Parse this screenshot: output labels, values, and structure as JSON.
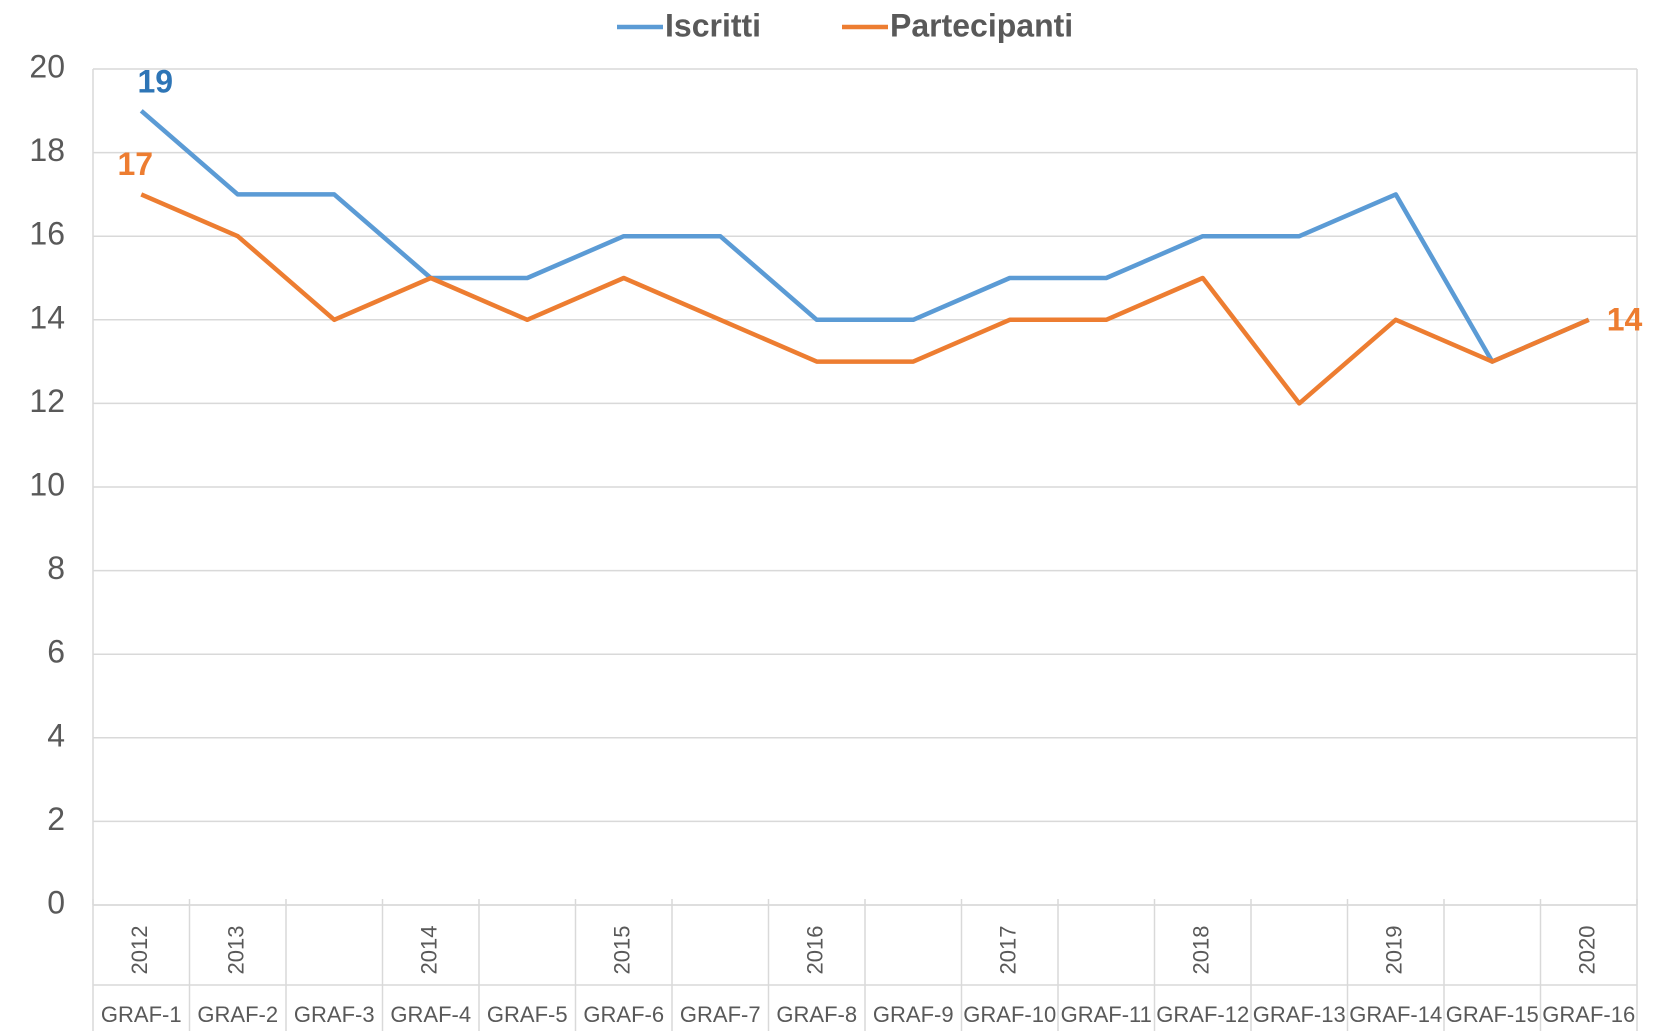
{
  "chart_data": {
    "type": "line",
    "categories": [
      "GRAF-1",
      "GRAF-2",
      "GRAF-3",
      "GRAF-4",
      "GRAF-5",
      "GRAF-6",
      "GRAF-7",
      "GRAF-8",
      "GRAF-9",
      "GRAF-10",
      "GRAF-11",
      "GRAF-12",
      "GRAF-13",
      "GRAF-14",
      "GRAF-15",
      "GRAF-16"
    ],
    "category_groups": [
      "2012",
      "2013",
      null,
      "2014",
      null,
      "2015",
      null,
      "2016",
      null,
      "2017",
      null,
      "2018",
      null,
      "2019",
      null,
      "2020"
    ],
    "series": [
      {
        "name": "Iscritti",
        "color": "#5b9bd5",
        "label_color": "#2e75b6",
        "values": [
          19,
          17,
          17,
          15,
          15,
          16,
          16,
          14,
          14,
          15,
          15,
          16,
          16,
          17,
          13,
          14
        ]
      },
      {
        "name": "Partecipanti",
        "color": "#ed7d31",
        "label_color": "#ed7d31",
        "values": [
          17,
          16,
          14,
          15,
          14,
          15,
          14,
          13,
          13,
          14,
          14,
          15,
          12,
          14,
          13,
          14
        ]
      }
    ],
    "ylim": [
      0,
      20
    ],
    "yticks": [
      0,
      2,
      4,
      6,
      8,
      10,
      12,
      14,
      16,
      18,
      20
    ],
    "grid": true,
    "legend": "top"
  }
}
